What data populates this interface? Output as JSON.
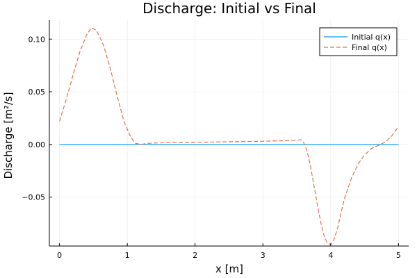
{
  "chart_data": {
    "type": "line",
    "title": "Discharge: Initial vs Final",
    "xlabel": "x [m]",
    "ylabel": "Discharge [m²/s]",
    "xlim": [
      -0.15,
      5.15
    ],
    "ylim": [
      -0.0965,
      0.118
    ],
    "xticks": [
      0,
      1,
      2,
      3,
      4,
      5
    ],
    "xtick_labels": [
      "0",
      "1",
      "2",
      "3",
      "4",
      "5"
    ],
    "yticks": [
      0.1,
      0.05,
      0.0,
      -0.05
    ],
    "ytick_labels": [
      "0.10",
      "0.05",
      "0.00",
      "−0.05"
    ],
    "grid": true,
    "legend_position": "top-right",
    "series": [
      {
        "name": "Initial q(x)",
        "color": "#009AFA",
        "style": "solid",
        "x": [
          0,
          5
        ],
        "y": [
          0,
          0
        ]
      },
      {
        "name": "Final q(x)",
        "color": "#E26F46",
        "style": "dashed",
        "x": [
          0,
          0.1,
          0.2,
          0.3,
          0.4,
          0.47,
          0.55,
          0.65,
          0.75,
          0.85,
          0.95,
          1.05,
          1.12,
          1.2,
          1.3,
          1.5,
          2.0,
          2.5,
          3.0,
          3.3,
          3.5,
          3.56,
          3.6,
          3.65,
          3.7,
          3.75,
          3.8,
          3.85,
          3.9,
          3.95,
          4.0,
          4.05,
          4.1,
          4.15,
          4.2,
          4.3,
          4.4,
          4.5,
          4.6,
          4.7,
          4.8,
          4.9,
          5.0
        ],
        "y": [
          0.022,
          0.043,
          0.066,
          0.088,
          0.104,
          0.111,
          0.108,
          0.094,
          0.072,
          0.046,
          0.022,
          0.007,
          0.001,
          0.0,
          0.001,
          0.0015,
          0.002,
          0.0025,
          0.003,
          0.0035,
          0.004,
          0.0045,
          0.002,
          -0.006,
          -0.02,
          -0.038,
          -0.056,
          -0.073,
          -0.086,
          -0.094,
          -0.095,
          -0.09,
          -0.08,
          -0.066,
          -0.052,
          -0.033,
          -0.019,
          -0.01,
          -0.004,
          -0.001,
          0.002,
          0.008,
          0.017
        ]
      }
    ]
  }
}
